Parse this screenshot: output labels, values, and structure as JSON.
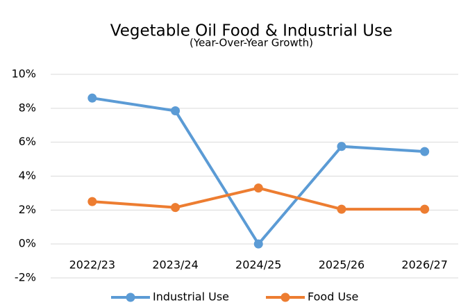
{
  "chart_data": {
    "type": "line",
    "title": "Vegetable Oil Food & Industrial Use",
    "subtitle": "(Year-Over-Year Growth)",
    "categories": [
      "2022/23",
      "2023/24",
      "2024/25",
      "2025/26",
      "2026/27"
    ],
    "series": [
      {
        "name": "Industrial Use",
        "color": "#5b9bd5",
        "values": [
          8.6,
          7.85,
          0.0,
          5.75,
          5.45
        ]
      },
      {
        "name": "Food Use",
        "color": "#ed7d31",
        "values": [
          2.5,
          2.15,
          3.3,
          2.05,
          2.05
        ]
      }
    ],
    "ylim": [
      -2,
      10
    ],
    "yticks": [
      {
        "value": -2,
        "label": "-2%"
      },
      {
        "value": 0,
        "label": "0%"
      },
      {
        "value": 2,
        "label": "2%"
      },
      {
        "value": 4,
        "label": "4%"
      },
      {
        "value": 6,
        "label": "6%"
      },
      {
        "value": 8,
        "label": "8%"
      },
      {
        "value": 10,
        "label": "10%"
      }
    ],
    "grid": true,
    "legend": "bottom"
  }
}
